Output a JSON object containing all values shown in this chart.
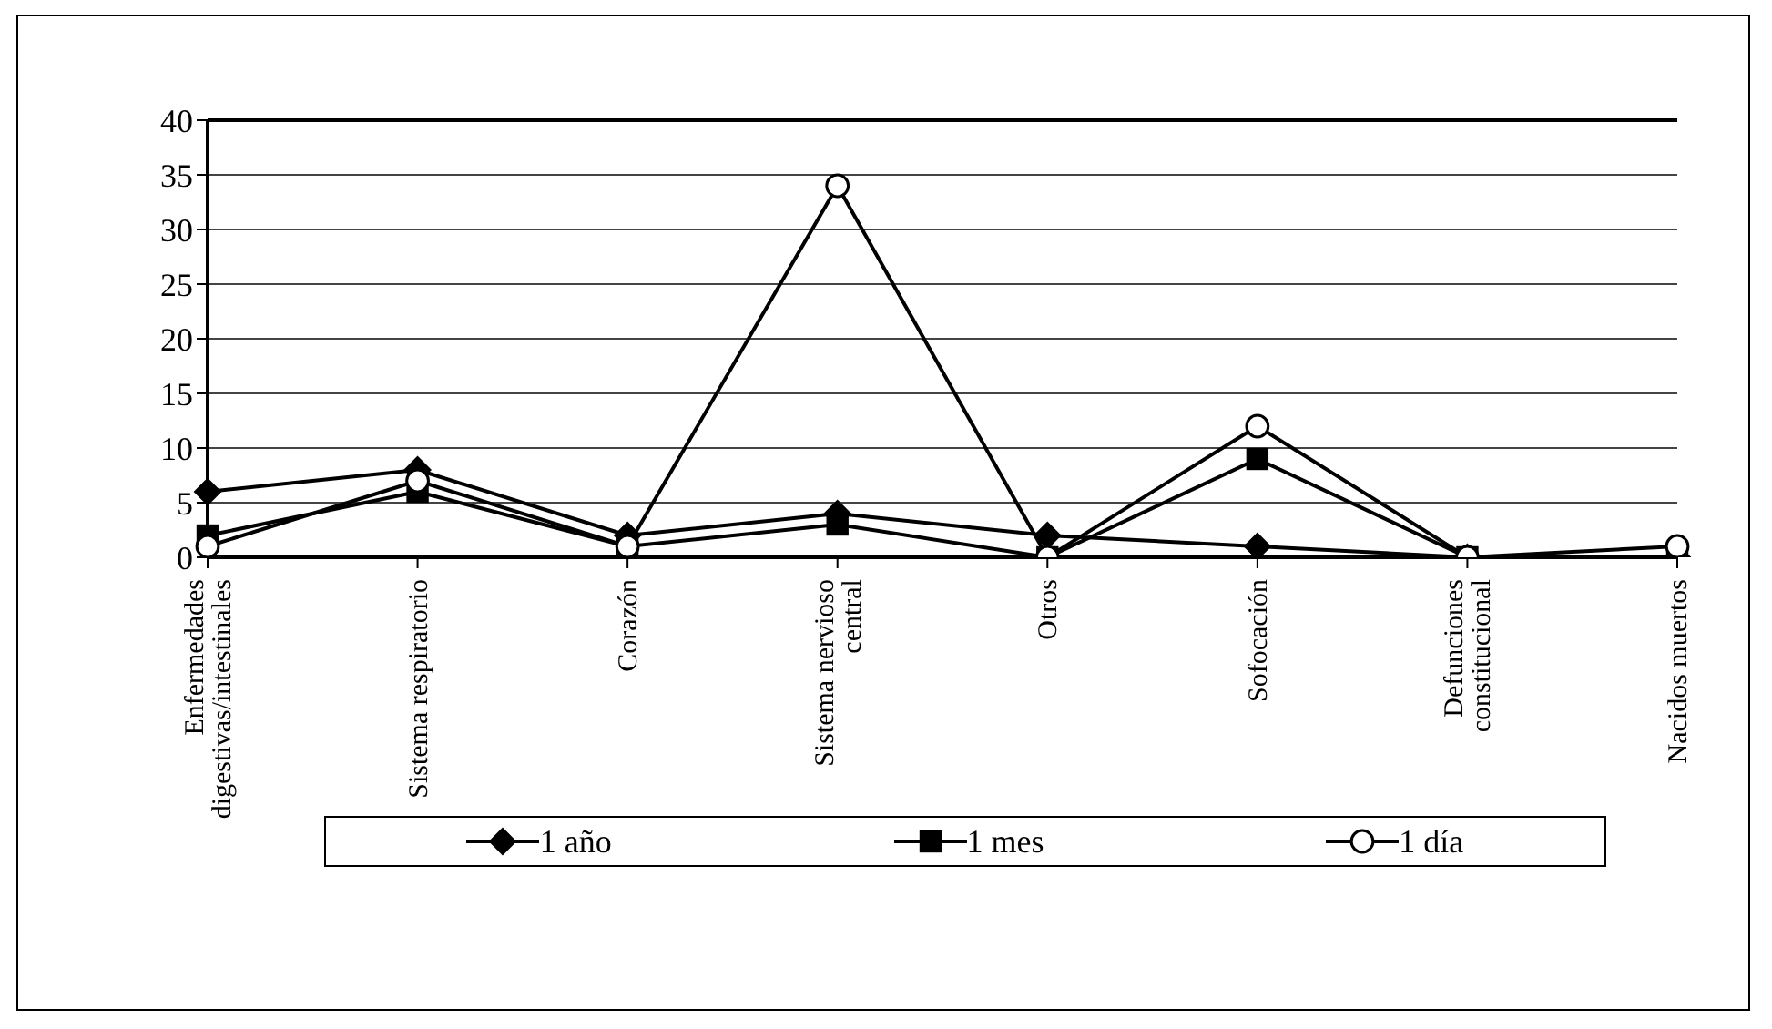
{
  "chart_data": {
    "type": "line",
    "categories": [
      "Enfermedades digestivas/intestinales",
      "Sistema respiratorio",
      "Corazón",
      "Sistema nervioso central",
      "Otros",
      "Sofocación",
      "Defunciones constitucional",
      "Nacidos muertos"
    ],
    "series": [
      {
        "name": "1 año",
        "color": "#000000",
        "marker": "diamond",
        "values": [
          6,
          8,
          2,
          4,
          2,
          1,
          0,
          0
        ]
      },
      {
        "name": "1 mes",
        "color": "#000000",
        "marker": "square",
        "values": [
          2,
          6,
          1,
          3,
          0,
          9,
          0,
          0
        ]
      },
      {
        "name": "1 día",
        "color": "#000000",
        "marker": "circle",
        "values": [
          1,
          7,
          1,
          34,
          0,
          12,
          0,
          1
        ]
      }
    ],
    "ylim": [
      0,
      40
    ],
    "yticks": [
      0,
      5,
      10,
      15,
      20,
      25,
      30,
      35,
      40
    ],
    "grid": "y",
    "legend": "bottom"
  }
}
